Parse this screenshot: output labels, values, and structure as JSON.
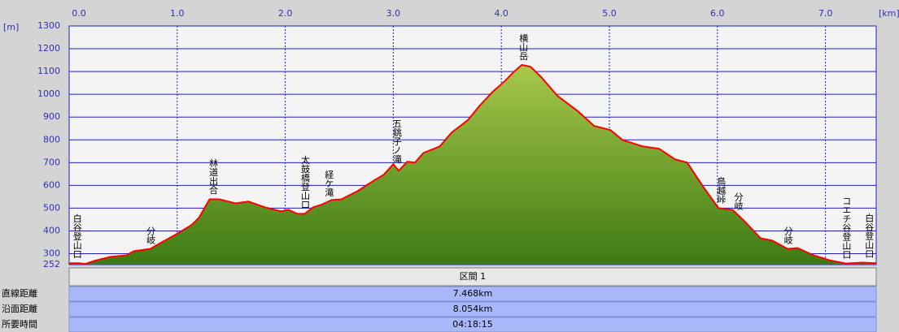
{
  "chart_data": {
    "type": "area",
    "x_unit": "[km]",
    "y_unit": "[m]",
    "x": [
      0,
      0.09,
      0.15,
      0.23,
      0.38,
      0.53,
      0.6,
      0.75,
      0.83,
      0.98,
      1.13,
      1.2,
      1.3,
      1.39,
      1.54,
      1.66,
      1.81,
      1.96,
      2.03,
      2.11,
      2.18,
      2.26,
      2.33,
      2.43,
      2.52,
      2.67,
      2.82,
      2.91,
      3.0,
      3.05,
      3.13,
      3.2,
      3.28,
      3.43,
      3.54,
      3.69,
      3.8,
      3.92,
      4.03,
      4.12,
      4.19,
      4.27,
      4.37,
      4.52,
      4.71,
      4.86,
      5.01,
      5.12,
      5.31,
      5.46,
      5.61,
      5.72,
      5.87,
      6.01,
      6.14,
      6.25,
      6.4,
      6.51,
      6.65,
      6.74,
      6.89,
      7.04,
      7.19,
      7.34,
      7.47
    ],
    "values": [
      258,
      258,
      255,
      268,
      286,
      293,
      311,
      321,
      343,
      382,
      425,
      457,
      539,
      539,
      521,
      529,
      504,
      486,
      493,
      475,
      475,
      504,
      514,
      536,
      539,
      575,
      621,
      646,
      693,
      664,
      704,
      700,
      743,
      771,
      832,
      886,
      950,
      1011,
      1057,
      1100,
      1129,
      1121,
      1075,
      993,
      925,
      861,
      843,
      800,
      771,
      761,
      714,
      700,
      593,
      500,
      493,
      443,
      368,
      357,
      321,
      325,
      293,
      271,
      257,
      261,
      258
    ],
    "color": "#ff0000",
    "fill": [
      "#a8c84a",
      "#3d7a14"
    ],
    "xlim": [
      0,
      7.47
    ],
    "xticks": [
      {
        "value": 0,
        "label": "0.0"
      },
      {
        "value": 1,
        "label": "1.0"
      },
      {
        "value": 2,
        "label": "2.0"
      },
      {
        "value": 3,
        "label": "3.0"
      },
      {
        "value": 4,
        "label": "4.0"
      },
      {
        "value": 5,
        "label": "5.0"
      },
      {
        "value": 6,
        "label": "6.0"
      },
      {
        "value": 7,
        "label": "7.0"
      }
    ],
    "ylim": [
      252,
      1300
    ],
    "yticks": [
      252,
      300,
      400,
      500,
      600,
      700,
      800,
      900,
      1000,
      1100,
      1200,
      1300
    ],
    "grid": true,
    "annotations": [
      {
        "x": 0.07,
        "text": "白谷登山口"
      },
      {
        "x": 0.75,
        "text": "分岐"
      },
      {
        "x": 1.33,
        "text": "林道出合"
      },
      {
        "x": 2.18,
        "text": "太鼓橋登山口"
      },
      {
        "x": 2.4,
        "text": "経ケ滝"
      },
      {
        "x": 3.03,
        "text": "五銚子ノ滝"
      },
      {
        "x": 4.2,
        "text": "横山岳"
      },
      {
        "x": 6.03,
        "text": "鳥越峠"
      },
      {
        "x": 6.19,
        "text": "分岐"
      },
      {
        "x": 6.65,
        "text": "分岐"
      },
      {
        "x": 7.19,
        "text": "コエチ谷登山口"
      },
      {
        "x": 7.4,
        "text": "白谷登山口"
      }
    ]
  },
  "table": {
    "section": "区間 1",
    "rows": [
      [
        "直線距離",
        "7.468km"
      ],
      [
        "沿面距離",
        "8.054km"
      ],
      [
        "所要時間",
        "04:18:15"
      ]
    ]
  }
}
